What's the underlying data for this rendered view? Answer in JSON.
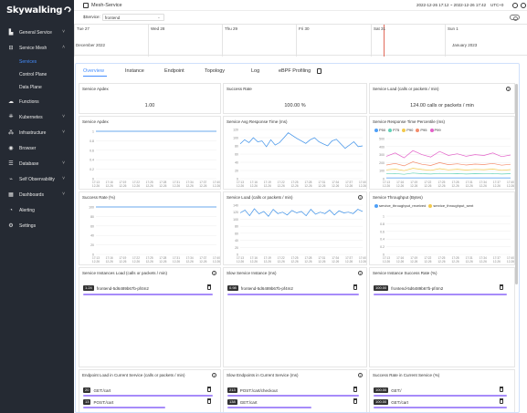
{
  "app": {
    "logo": "Skywalking",
    "title": "Mesh-Service",
    "time_range": "2022-12-26 17:12 ~ 2022-12-26 17:42",
    "timezone": "UTC+0",
    "service_label": "$Service:",
    "service_value": "frontend"
  },
  "sidebar": {
    "items": [
      {
        "label": "General Service",
        "icon": "chart-icon",
        "has_chevron": true
      },
      {
        "label": "Service Mesh",
        "icon": "mesh-icon",
        "has_chevron": true,
        "expanded": true
      },
      {
        "label": "Functions",
        "icon": "cloud-icon",
        "has_chevron": false
      },
      {
        "label": "Kubernetes",
        "icon": "kubernetes-icon",
        "has_chevron": true
      },
      {
        "label": "Infrastructure",
        "icon": "infrastructure-icon",
        "has_chevron": true
      },
      {
        "label": "Browser",
        "icon": "browser-icon",
        "has_chevron": false
      },
      {
        "label": "Database",
        "icon": "database-icon",
        "has_chevron": true
      },
      {
        "label": "Self Observability",
        "icon": "self-observability-icon",
        "has_chevron": true
      },
      {
        "label": "Dashboards",
        "icon": "dashboard-icon",
        "has_chevron": true
      },
      {
        "label": "Alerting",
        "icon": "alert-icon",
        "has_chevron": false
      },
      {
        "label": "Settings",
        "icon": "gear-icon",
        "has_chevron": false
      }
    ],
    "sub_items": [
      "Services",
      "Control Plane",
      "Data Plane"
    ]
  },
  "timeline": {
    "days": [
      "Tue 27",
      "Wed 28",
      "Thu 29",
      "Fri 30",
      "Sat 31",
      "Sun 1"
    ],
    "left_label": "December 2022",
    "right_label": "January 2023"
  },
  "tabs": [
    "Overview",
    "Instance",
    "Endpoint",
    "Topology",
    "Log",
    "eBPF Profiling"
  ],
  "cards": {
    "apdex_title": "Service Apdex",
    "apdex_value": "1.00",
    "success_rate_title": "Success Rate",
    "success_rate_value": "100.00 %",
    "load_title": "Service Load (calls or packets / min)",
    "load_value": "124.00 calls or packets / min",
    "apdex_chart_title": "Service Apdex",
    "resp_time_title": "Service Avg Response Time (ms)",
    "percentile_title": "Service Response Time Percentile (ms)",
    "success_rate_chart_title": "Success Rate (%)",
    "load_chart_title": "Service Load (calls or packets / min)",
    "throughput_title": "Service Throughput (Bytes)",
    "instances_load_title": "Service Instances Load (calls or packets / min)",
    "slow_instance_title": "Slow Service Instance (ms)",
    "instance_success_title": "Service Instance Success Rate (%)",
    "endpoint_load_title": "Endpoint Load in Current Service (calls or packets / min)",
    "slow_endpoints_title": "Slow Endpoints in Current Service (ms)",
    "endpoint_success_title": "Success Rate in Current Service (%)"
  },
  "instance_rows": {
    "load": {
      "value": "1.24",
      "name": "frontend-5d6489b67b-pf4m2"
    },
    "slow": {
      "value": "0.98",
      "name": "frontend-5d6489b67b-pf4m2"
    },
    "success": {
      "value": "100.00",
      "name": "frontend-5d6489b67b-pf4m2"
    }
  },
  "endpoint_rows": {
    "load": [
      {
        "value": "20",
        "name": "GET:/cart"
      },
      {
        "value": "13",
        "name": "POST:/cart"
      }
    ],
    "slow": [
      {
        "value": "213",
        "name": "POST:/cart/checkout"
      },
      {
        "value": "138",
        "name": "GET:/cart"
      }
    ],
    "success": [
      {
        "value": "100.00",
        "name": "GET:/"
      },
      {
        "value": "100.00",
        "name": "GET:/cart"
      }
    ]
  },
  "legends": {
    "percentile": [
      "P50",
      "P75",
      "P90",
      "P95",
      "P99"
    ],
    "throughput": [
      "service_throughput_received",
      "service_throughput_sent"
    ]
  },
  "colors": {
    "accent": "#448dfe",
    "sidebar_bg": "#252a33",
    "p50": "#4d9ff8",
    "p75": "#62d2b8",
    "p90": "#f2c94c",
    "p95": "#f48c6b",
    "p99": "#e361c9",
    "line": "#3a8fe8"
  },
  "chart_data": [
    {
      "type": "line",
      "title": "Service Apdex",
      "x": [
        "17:13\n12-26",
        "17:16\n12-26",
        "17:19\n12-26",
        "17:22\n12-26",
        "17:25\n12-26",
        "17:28\n12-26",
        "17:31\n12-26",
        "17:34\n12-26",
        "17:37\n12-26",
        "17:40\n12-26"
      ],
      "values": [
        1,
        1,
        1,
        1,
        1,
        1,
        1,
        1,
        1,
        1
      ],
      "ylim": [
        0,
        1
      ],
      "yticks": [
        0,
        0.2,
        0.4,
        0.6,
        0.8,
        1
      ]
    },
    {
      "type": "line",
      "title": "Service Avg Response Time (ms)",
      "ylim": [
        0,
        120
      ],
      "yticks": [
        0,
        20,
        40,
        60,
        80,
        100,
        120
      ],
      "values": [
        85,
        95,
        88,
        100,
        90,
        92,
        78,
        95,
        82,
        88,
        100,
        112,
        105,
        98,
        92,
        86,
        95,
        100,
        90,
        85,
        80,
        92,
        96,
        85,
        74,
        82,
        90,
        78,
        80
      ]
    },
    {
      "type": "line",
      "title": "Service Response Time Percentile (ms)",
      "ylim": [
        0,
        500
      ],
      "yticks": [
        0,
        100,
        200,
        300,
        400,
        500
      ],
      "series": [
        {
          "name": "P50",
          "values": [
            10,
            10,
            10,
            10,
            10,
            10,
            10,
            10,
            10,
            10,
            10,
            10,
            10,
            10,
            10
          ]
        },
        {
          "name": "P75",
          "values": [
            60,
            65,
            55,
            70,
            62,
            58,
            66,
            60,
            64,
            58,
            62,
            60,
            65,
            58,
            62
          ]
        },
        {
          "name": "P90",
          "values": [
            110,
            120,
            100,
            130,
            115,
            105,
            125,
            110,
            118,
            108,
            116,
            112,
            120,
            105,
            114
          ]
        },
        {
          "name": "P95",
          "values": [
            170,
            190,
            160,
            210,
            180,
            165,
            200,
            175,
            185,
            170,
            182,
            176,
            190,
            168,
            180
          ]
        },
        {
          "name": "P99",
          "values": [
            280,
            320,
            260,
            350,
            300,
            270,
            340,
            290,
            310,
            280,
            300,
            290,
            320,
            275,
            295
          ]
        }
      ]
    },
    {
      "type": "line",
      "title": "Success Rate (%)",
      "ylim": [
        0,
        100
      ],
      "yticks": [
        0,
        20,
        40,
        60,
        80,
        100
      ],
      "values": [
        100,
        100,
        100,
        100,
        100,
        100,
        100,
        100,
        100,
        100
      ]
    },
    {
      "type": "line",
      "title": "Service Load (calls or packets / min)",
      "ylim": [
        0,
        140
      ],
      "yticks": [
        0,
        20,
        40,
        60,
        80,
        100,
        120,
        140
      ],
      "values": [
        118,
        126,
        110,
        130,
        115,
        122,
        108,
        128,
        116,
        120,
        112,
        125,
        118,
        122,
        110,
        128,
        114,
        120,
        116,
        126,
        112,
        124,
        118,
        120,
        116,
        128,
        122
      ]
    },
    {
      "type": "line",
      "title": "Service Throughput (Bytes)",
      "ylim": [
        0,
        1
      ],
      "yticks": [
        0,
        0.2,
        0.4,
        0.6,
        0.8,
        1
      ],
      "series": [
        {
          "name": "service_throughput_received",
          "values": []
        },
        {
          "name": "service_throughput_sent",
          "values": []
        }
      ]
    }
  ]
}
